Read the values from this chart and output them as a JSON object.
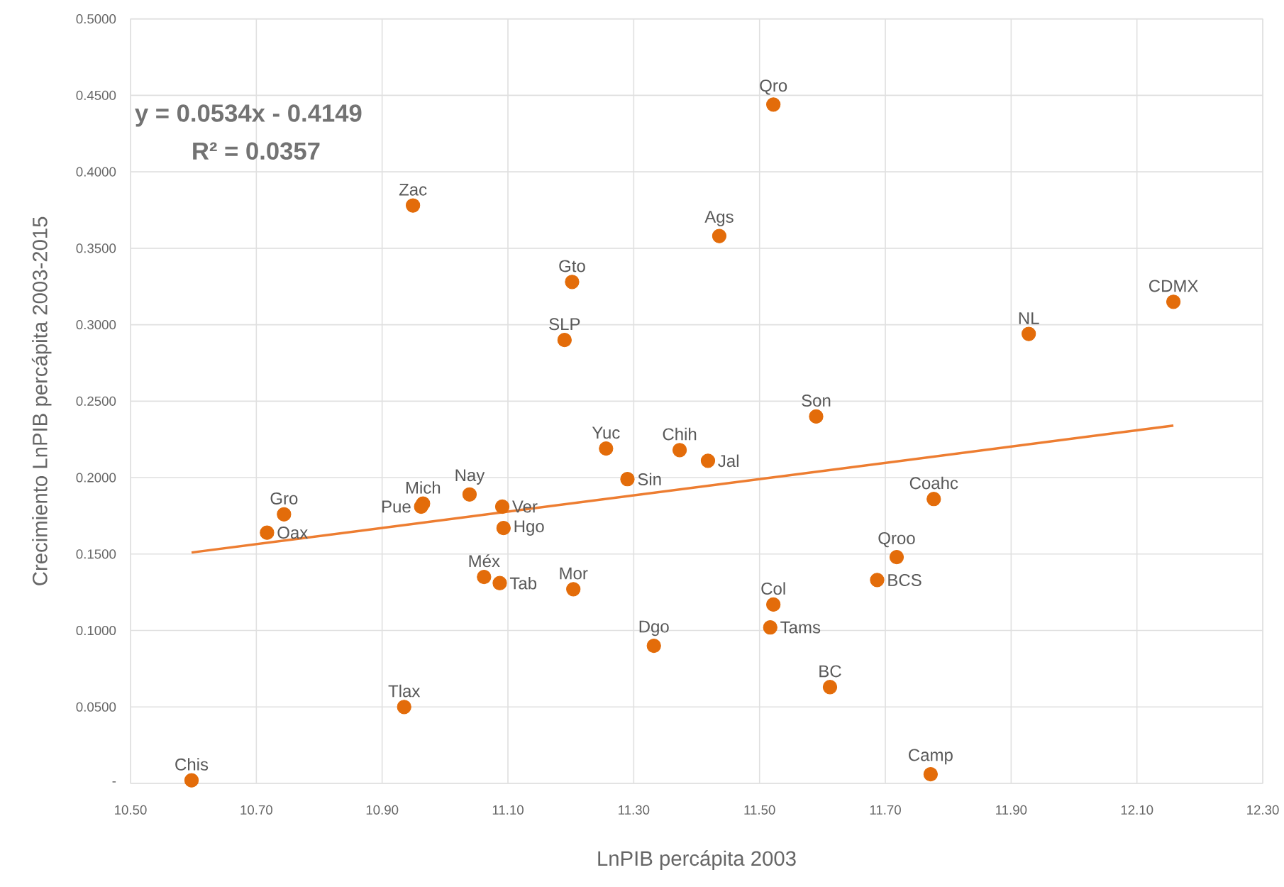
{
  "chart_data": {
    "type": "scatter",
    "xlabel": "LnPIB percápita  2003",
    "ylabel": "Crecimiento LnPIB percápita 2003-2015",
    "xlim": [
      10.5,
      12.3
    ],
    "ylim": [
      0,
      0.5
    ],
    "xticks": [
      {
        "value": 10.5,
        "label": "10.50"
      },
      {
        "value": 10.7,
        "label": "10.70"
      },
      {
        "value": 10.9,
        "label": "10.90"
      },
      {
        "value": 11.1,
        "label": "11.10"
      },
      {
        "value": 11.3,
        "label": "11.30"
      },
      {
        "value": 11.5,
        "label": "11.50"
      },
      {
        "value": 11.7,
        "label": "11.70"
      },
      {
        "value": 11.9,
        "label": "11.90"
      },
      {
        "value": 12.1,
        "label": "12.10"
      },
      {
        "value": 12.3,
        "label": "12.30"
      }
    ],
    "yticks": [
      {
        "value": 0,
        "label": "-"
      },
      {
        "value": 0.05,
        "label": "0.0500"
      },
      {
        "value": 0.1,
        "label": "0.1000"
      },
      {
        "value": 0.15,
        "label": "0.1500"
      },
      {
        "value": 0.2,
        "label": "0.2000"
      },
      {
        "value": 0.25,
        "label": "0.2500"
      },
      {
        "value": 0.3,
        "label": "0.3000"
      },
      {
        "value": 0.35,
        "label": "0.3500"
      },
      {
        "value": 0.4,
        "label": "0.4000"
      },
      {
        "value": 0.45,
        "label": "0.4500"
      },
      {
        "value": 0.5,
        "label": "0.5000"
      }
    ],
    "grid": true,
    "series": [
      {
        "type": "scatter",
        "color": "#e36c0a",
        "marker": "circle",
        "x": [
          10.597,
          10.717,
          10.744,
          10.965,
          10.962,
          11.039,
          11.091,
          11.093,
          11.062,
          11.087,
          11.204,
          10.935,
          10.949,
          11.202,
          11.19,
          11.256,
          11.29,
          11.332,
          11.373,
          11.418,
          11.436,
          11.522,
          11.59,
          11.522,
          11.517,
          11.612,
          11.687,
          11.718,
          11.777,
          11.772,
          11.928,
          12.158
        ],
        "values": [
          0.002,
          0.164,
          0.176,
          0.183,
          0.181,
          0.189,
          0.181,
          0.167,
          0.135,
          0.131,
          0.127,
          0.05,
          0.378,
          0.328,
          0.29,
          0.219,
          0.199,
          0.09,
          0.218,
          0.211,
          0.358,
          0.444,
          0.24,
          0.117,
          0.102,
          0.063,
          0.133,
          0.148,
          0.186,
          0.006,
          0.294,
          0.315
        ]
      },
      {
        "type": "line",
        "color": "#ed7d31",
        "marker": "none",
        "x": [
          10.597,
          12.158
        ],
        "values": [
          0.151,
          0.234
        ]
      }
    ],
    "annotations": [
      "y = 0.0534x - 0.4149",
      "R² = 0.0357",
      {
        "text": "Chis",
        "x": 10.597,
        "y": 0.002
      },
      {
        "text": "Oax",
        "x": 10.717,
        "y": 0.164
      },
      {
        "text": "Gro",
        "x": 10.744,
        "y": 0.176
      },
      {
        "text": "Mich",
        "x": 10.965,
        "y": 0.183
      },
      {
        "text": "Pue",
        "x": 10.962,
        "y": 0.181
      },
      {
        "text": "Nay",
        "x": 11.039,
        "y": 0.189
      },
      {
        "text": "Ver",
        "x": 11.091,
        "y": 0.181
      },
      {
        "text": "Hgo",
        "x": 11.093,
        "y": 0.167
      },
      {
        "text": "Méx",
        "x": 11.062,
        "y": 0.135
      },
      {
        "text": "Tab",
        "x": 11.087,
        "y": 0.131
      },
      {
        "text": "Mor",
        "x": 11.204,
        "y": 0.127
      },
      {
        "text": "Tlax",
        "x": 10.935,
        "y": 0.05
      },
      {
        "text": "Zac",
        "x": 10.949,
        "y": 0.378
      },
      {
        "text": "Gto",
        "x": 11.202,
        "y": 0.328
      },
      {
        "text": "SLP",
        "x": 11.19,
        "y": 0.29
      },
      {
        "text": "Yuc",
        "x": 11.256,
        "y": 0.219
      },
      {
        "text": "Sin",
        "x": 11.29,
        "y": 0.199
      },
      {
        "text": "Dgo",
        "x": 11.332,
        "y": 0.09
      },
      {
        "text": "Chih",
        "x": 11.373,
        "y": 0.218
      },
      {
        "text": "Jal",
        "x": 11.418,
        "y": 0.211
      },
      {
        "text": "Ags",
        "x": 11.436,
        "y": 0.358
      },
      {
        "text": "Qro",
        "x": 11.522,
        "y": 0.444
      },
      {
        "text": "Son",
        "x": 11.59,
        "y": 0.24
      },
      {
        "text": "Col",
        "x": 11.522,
        "y": 0.117
      },
      {
        "text": "Tams",
        "x": 11.517,
        "y": 0.102
      },
      {
        "text": "BC",
        "x": 11.612,
        "y": 0.063
      },
      {
        "text": "BCS",
        "x": 11.687,
        "y": 0.133
      },
      {
        "text": "Qroo",
        "x": 11.718,
        "y": 0.148
      },
      {
        "text": "Coahc",
        "x": 11.777,
        "y": 0.186
      },
      {
        "text": "Camp",
        "x": 11.772,
        "y": 0.006
      },
      {
        "text": "NL",
        "x": 11.928,
        "y": 0.294
      },
      {
        "text": "CDMX",
        "x": 12.158,
        "y": 0.315
      }
    ]
  }
}
